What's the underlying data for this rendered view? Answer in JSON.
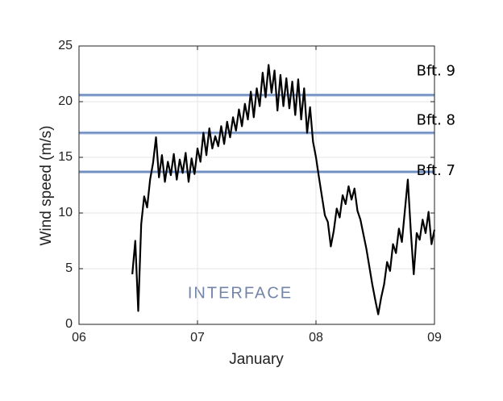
{
  "chart_data": {
    "type": "line",
    "y_label": "Wind speed (m/s)",
    "x_label": "January",
    "watermark": "INTERFACE",
    "xlim": [
      6,
      9
    ],
    "xticks": [
      {
        "value": 6,
        "label": "06"
      },
      {
        "value": 7,
        "label": "07"
      },
      {
        "value": 8,
        "label": "08"
      },
      {
        "value": 9,
        "label": "09"
      }
    ],
    "ylim": [
      0,
      25
    ],
    "yticks": [
      0,
      5,
      10,
      15,
      20,
      25
    ],
    "reference_lines": [
      {
        "value": 20.6,
        "label": "Bft. 9"
      },
      {
        "value": 17.2,
        "label": "Bft. 8"
      },
      {
        "value": 13.7,
        "label": "Bft. 7"
      }
    ],
    "reference_color": "#5b7fb5",
    "x": [
      6.45,
      6.475,
      6.5,
      6.525,
      6.55,
      6.575,
      6.6,
      6.625,
      6.65,
      6.675,
      6.7,
      6.725,
      6.75,
      6.775,
      6.8,
      6.825,
      6.85,
      6.875,
      6.9,
      6.925,
      6.95,
      6.975,
      7.0,
      7.025,
      7.05,
      7.075,
      7.1,
      7.125,
      7.15,
      7.175,
      7.2,
      7.225,
      7.25,
      7.275,
      7.3,
      7.325,
      7.35,
      7.375,
      7.4,
      7.425,
      7.45,
      7.475,
      7.5,
      7.525,
      7.55,
      7.575,
      7.6,
      7.625,
      7.65,
      7.675,
      7.7,
      7.725,
      7.75,
      7.775,
      7.8,
      7.825,
      7.85,
      7.875,
      7.9,
      7.925,
      7.95,
      7.975,
      8.0,
      8.025,
      8.05,
      8.075,
      8.1,
      8.125,
      8.15,
      8.175,
      8.2,
      8.225,
      8.25,
      8.275,
      8.3,
      8.325,
      8.35,
      8.375,
      8.4,
      8.425,
      8.45,
      8.475,
      8.5,
      8.525,
      8.55,
      8.575,
      8.6,
      8.625,
      8.65,
      8.675,
      8.7,
      8.725,
      8.75,
      8.775,
      8.8,
      8.825,
      8.85,
      8.875,
      8.9,
      8.925,
      8.95,
      8.975,
      9.0
    ],
    "series": [
      {
        "color": "#000000",
        "values": [
          4.5,
          7.5,
          1.2,
          9,
          11.5,
          10.5,
          13,
          14.5,
          16.8,
          13.2,
          15.2,
          12.8,
          14.6,
          13.4,
          15.3,
          13,
          14.8,
          13.6,
          15.4,
          12.8,
          14.9,
          13.5,
          15.8,
          14.6,
          17.2,
          15.2,
          17.6,
          15.8,
          16.9,
          16,
          17.8,
          16.2,
          18.2,
          16.8,
          18.6,
          17.4,
          19.3,
          17.8,
          19.8,
          18.4,
          20.9,
          18.6,
          21.2,
          19.6,
          22.6,
          20.4,
          23.3,
          20.8,
          22.8,
          19.2,
          22.4,
          19.6,
          22.1,
          19.4,
          21.8,
          18.8,
          22,
          18.4,
          21.2,
          17.2,
          19.5,
          16.4,
          15,
          13.2,
          11.5,
          9.8,
          9.2,
          7,
          8.4,
          10.4,
          9.6,
          11.6,
          10.8,
          12.4,
          11.2,
          12.2,
          10.2,
          9.4,
          8.1,
          6.8,
          5.2,
          3.6,
          2.2,
          0.9,
          2.4,
          3.6,
          5.6,
          4.8,
          7.2,
          6.4,
          8.6,
          7.4,
          10.2,
          13,
          8.4,
          4.5,
          8.2,
          7.6,
          9.4,
          8.2,
          10.1,
          7.2,
          8.5
        ]
      }
    ]
  }
}
